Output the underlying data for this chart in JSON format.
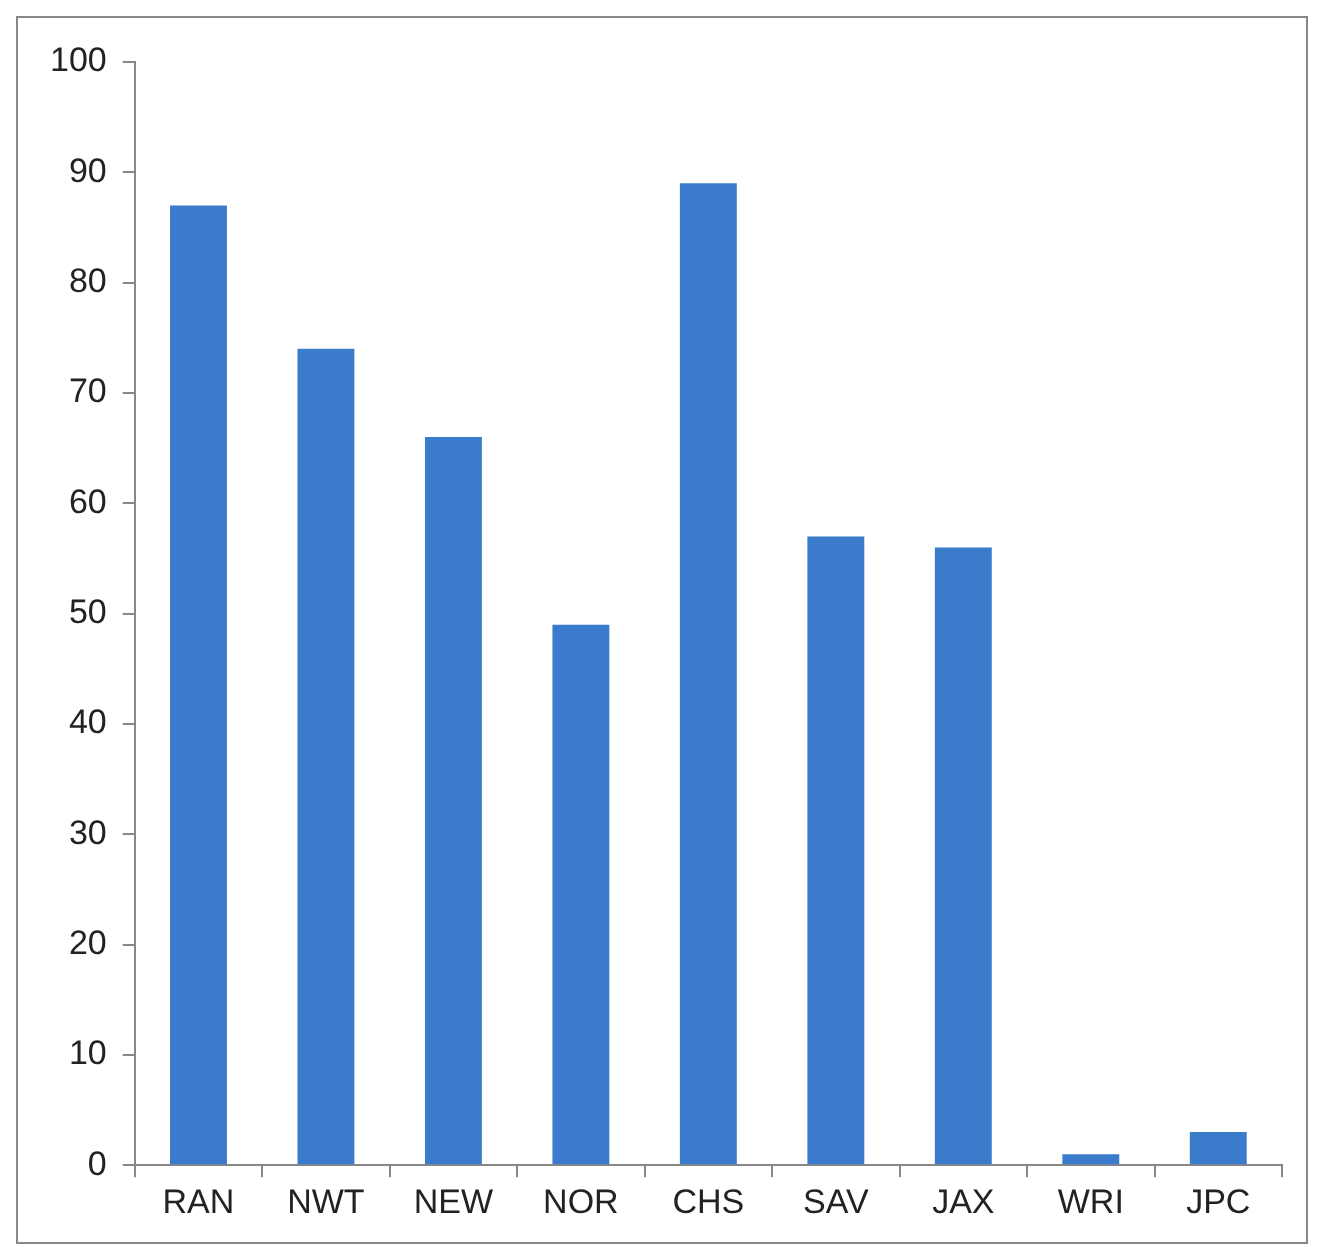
{
  "chart_data": {
    "type": "bar",
    "categories": [
      "RAN",
      "NWT",
      "NEW",
      "NOR",
      "CHS",
      "SAV",
      "JAX",
      "WRI",
      "JPC"
    ],
    "values": [
      87,
      74,
      66,
      49,
      89,
      57,
      56,
      1,
      3
    ],
    "color": "#3a7bcb",
    "ylim": [
      0,
      100
    ],
    "yticks": [
      0,
      10,
      20,
      30,
      40,
      50,
      60,
      70,
      80,
      90,
      100
    ],
    "grid": false,
    "legend": false
  }
}
